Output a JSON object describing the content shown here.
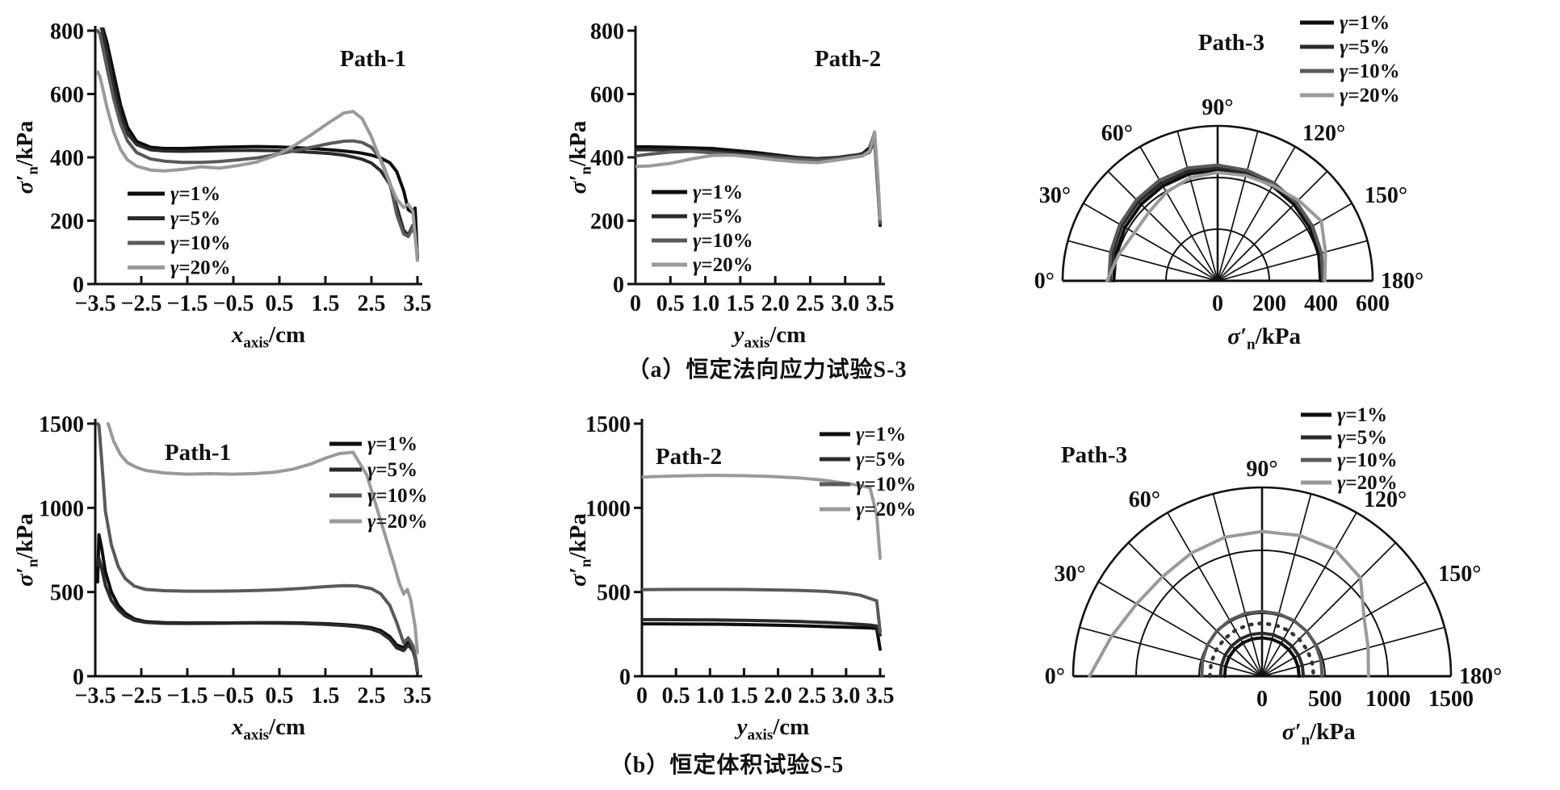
{
  "figure": {
    "background": "#ffffff",
    "series_labels": [
      "γ=1%",
      "γ=5%",
      "γ=10%",
      "γ=20%"
    ],
    "series_colors": [
      "#0d0d0d",
      "#2b2b2b",
      "#5a5a5a",
      "#9a9a9a"
    ],
    "axis_color": "#111111"
  },
  "captions": {
    "a": "（a）恒定法向应力试验S-3",
    "b": "（b）恒定体积试验S-5"
  },
  "chart_data": [
    {
      "id": "s3-path1",
      "type": "line",
      "title": "Path-1",
      "xlabel": {
        "base": "x",
        "sub": "axis",
        "rest": "/cm",
        "italic": true
      },
      "ylabel": {
        "base": "σ′",
        "sub": "n",
        "rest": "/kPa",
        "italic": true
      },
      "xlim": [
        -3.5,
        3.5
      ],
      "ylim": [
        0,
        800
      ],
      "xticks": {
        "values": [
          -3.5,
          -2.5,
          -1.5,
          -0.5,
          0.5,
          1.5,
          2.5,
          3.5
        ],
        "labels": [
          "−3.5",
          "−2.5",
          "−1.5",
          "−0.5",
          "0.5",
          "1.5",
          "2.5",
          "3.5"
        ]
      },
      "yticks": {
        "values": [
          0,
          200,
          400,
          600,
          800
        ],
        "labels": [
          "0",
          "200",
          "400",
          "600",
          "800"
        ]
      },
      "x": [
        -3.45,
        -3.4,
        -3.35,
        -3.25,
        -3.1,
        -2.95,
        -2.8,
        -2.6,
        -2.3,
        -2.0,
        -1.6,
        -1.2,
        -0.8,
        -0.4,
        0,
        0.4,
        0.8,
        1.2,
        1.6,
        1.9,
        2.1,
        2.3,
        2.5,
        2.7,
        2.9,
        3.05,
        3.2,
        3.3,
        3.4,
        3.45,
        3.5
      ],
      "series": [
        {
          "name": "γ=1%",
          "y": [
            840,
            835,
            815,
            765,
            665,
            565,
            495,
            450,
            432,
            428,
            428,
            430,
            432,
            433,
            434,
            433,
            431,
            428,
            424,
            420,
            417,
            413,
            407,
            398,
            383,
            355,
            295,
            235,
            225,
            240,
            80
          ]
        },
        {
          "name": "γ=5%",
          "y": [
            835,
            825,
            800,
            735,
            625,
            535,
            475,
            440,
            424,
            420,
            419,
            420,
            421,
            422,
            422,
            421,
            419,
            416,
            412,
            407,
            401,
            394,
            382,
            358,
            315,
            245,
            170,
            155,
            185,
            165,
            80
          ]
        },
        {
          "name": "γ=10%",
          "y": [
            800,
            790,
            755,
            685,
            585,
            505,
            452,
            415,
            395,
            388,
            384,
            384,
            387,
            392,
            398,
            408,
            420,
            432,
            444,
            451,
            452,
            447,
            432,
            395,
            320,
            220,
            158,
            150,
            178,
            155,
            95
          ]
        },
        {
          "name": "γ=20%",
          "y": [
            670,
            655,
            625,
            560,
            480,
            425,
            392,
            372,
            360,
            357,
            362,
            370,
            366,
            374,
            385,
            405,
            435,
            472,
            512,
            540,
            545,
            522,
            465,
            390,
            318,
            268,
            242,
            252,
            230,
            150,
            75
          ]
        }
      ]
    },
    {
      "id": "s3-path2",
      "type": "line",
      "title": "Path-2",
      "xlabel": {
        "base": "y",
        "sub": "axis",
        "rest": "/cm",
        "italic": true
      },
      "ylabel": {
        "base": "σ′",
        "sub": "n",
        "rest": "/kPa",
        "italic": true
      },
      "xlim": [
        0,
        3.5
      ],
      "ylim": [
        0,
        800
      ],
      "xticks": {
        "values": [
          0,
          0.5,
          1.0,
          1.5,
          2.0,
          2.5,
          3.0,
          3.5
        ],
        "labels": [
          "0",
          "0.5",
          "1.0",
          "1.5",
          "2.0",
          "2.5",
          "3.0",
          "3.5"
        ]
      },
      "yticks": {
        "values": [
          0,
          200,
          400,
          600,
          800
        ],
        "labels": [
          "0",
          "200",
          "400",
          "600",
          "800"
        ]
      },
      "x": [
        0,
        0.2,
        0.5,
        0.8,
        1.1,
        1.4,
        1.7,
        2.0,
        2.3,
        2.6,
        2.9,
        3.1,
        3.25,
        3.35,
        3.42,
        3.47,
        3.5
      ],
      "series": [
        {
          "name": "γ=1%",
          "y": [
            433,
            433,
            432,
            430,
            428,
            422,
            416,
            408,
            400,
            396,
            398,
            404,
            412,
            430,
            478,
            320,
            185
          ]
        },
        {
          "name": "γ=5%",
          "y": [
            424,
            424,
            423,
            422,
            419,
            414,
            409,
            404,
            399,
            396,
            400,
            406,
            410,
            422,
            465,
            300,
            190
          ]
        },
        {
          "name": "γ=10%",
          "y": [
            404,
            410,
            417,
            419,
            414,
            408,
            404,
            399,
            394,
            391,
            396,
            402,
            406,
            416,
            455,
            290,
            195
          ]
        },
        {
          "name": "γ=20%",
          "y": [
            371,
            373,
            381,
            395,
            406,
            407,
            400,
            392,
            386,
            383,
            392,
            399,
            404,
            420,
            480,
            330,
            205
          ]
        }
      ]
    },
    {
      "id": "s3-path3",
      "type": "polar-line",
      "title": "Path-3",
      "rlabel": {
        "base": "σ′",
        "sub": "n",
        "rest": "/kPa",
        "italic": true
      },
      "rlim": [
        0,
        600
      ],
      "rticks": {
        "values": [
          0,
          200,
          400,
          600
        ],
        "labels": [
          "0",
          "200",
          "400",
          "600"
        ]
      },
      "angle_ticks_deg": [
        0,
        30,
        60,
        90,
        120,
        150,
        180
      ],
      "spoke_step_deg": 15,
      "angles_deg": [
        0,
        15,
        30,
        45,
        60,
        75,
        90,
        105,
        120,
        135,
        150,
        165,
        180
      ],
      "series": [
        {
          "name": "γ=1%",
          "r": [
            402,
            408,
            414,
            419,
            424,
            428,
            430,
            428,
            424,
            418,
            412,
            405,
            398
          ]
        },
        {
          "name": "γ=5%",
          "r": [
            416,
            421,
            428,
            433,
            437,
            440,
            438,
            436,
            432,
            428,
            421,
            413,
            406
          ]
        },
        {
          "name": "γ=10%",
          "r": [
            421,
            429,
            437,
            444,
            450,
            452,
            448,
            443,
            437,
            431,
            424,
            416,
            409
          ]
        },
        {
          "name": "γ=20%",
          "r": [
            428,
            396,
            372,
            376,
            396,
            413,
            420,
            422,
            426,
            442,
            463,
            432,
            415
          ]
        }
      ]
    },
    {
      "id": "s5-path1",
      "type": "line",
      "title": "Path-1",
      "xlabel": {
        "base": "x",
        "sub": "axis",
        "rest": "/cm",
        "italic": true
      },
      "ylabel": {
        "base": "σ′",
        "sub": "n",
        "rest": "/kPa",
        "italic": true
      },
      "xlim": [
        -3.5,
        3.5
      ],
      "ylim": [
        0,
        1500
      ],
      "xticks": {
        "values": [
          -3.5,
          -2.5,
          -1.5,
          -0.5,
          0.5,
          1.5,
          2.5,
          3.5
        ],
        "labels": [
          "−3.5",
          "−2.5",
          "−1.5",
          "−0.5",
          "0.5",
          "1.5",
          "2.5",
          "3.5"
        ]
      },
      "yticks": {
        "values": [
          0,
          500,
          1000,
          1500
        ],
        "labels": [
          "0",
          "500",
          "1000",
          "1500"
        ]
      },
      "x": [
        -3.45,
        -3.42,
        -3.36,
        -3.28,
        -3.15,
        -3.0,
        -2.85,
        -2.65,
        -2.4,
        -2.0,
        -1.5,
        -1.0,
        -0.5,
        0,
        0.5,
        1.0,
        1.5,
        1.9,
        2.2,
        2.5,
        2.7,
        2.9,
        3.05,
        3.2,
        3.3,
        3.4,
        3.45,
        3.5
      ],
      "series": [
        {
          "name": "γ=1%",
          "y": [
            560,
            840,
            760,
            620,
            500,
            420,
            375,
            340,
            324,
            318,
            316,
            316,
            317,
            318,
            318,
            316,
            312,
            306,
            300,
            288,
            272,
            235,
            185,
            170,
            200,
            170,
            120,
            25
          ]
        },
        {
          "name": "γ=5%",
          "y": [
            660,
            700,
            640,
            540,
            450,
            395,
            358,
            332,
            320,
            314,
            313,
            314,
            315,
            316,
            315,
            313,
            308,
            301,
            294,
            280,
            260,
            220,
            168,
            152,
            185,
            152,
            108,
            25
          ]
        },
        {
          "name": "γ=10%",
          "y": [
            1500,
            1490,
            1280,
            980,
            780,
            650,
            580,
            535,
            515,
            508,
            505,
            505,
            506,
            509,
            514,
            522,
            532,
            538,
            536,
            520,
            490,
            420,
            318,
            198,
            228,
            182,
            128,
            35
          ]
        },
        {
          "name": "γ=20%",
          "x": [
            -3.22,
            -3.1,
            -2.95,
            -2.8,
            -2.6,
            -2.4,
            -2.0,
            -1.5,
            -1.0,
            -0.5,
            0,
            0.4,
            0.8,
            1.2,
            1.5,
            1.8,
            2.1,
            2.4,
            2.6,
            2.8,
            3.0,
            3.1,
            3.2,
            3.28,
            3.35,
            3.45,
            3.5
          ],
          "y": [
            1500,
            1395,
            1315,
            1268,
            1240,
            1222,
            1207,
            1200,
            1203,
            1200,
            1204,
            1212,
            1230,
            1262,
            1295,
            1322,
            1330,
            1195,
            1015,
            835,
            655,
            558,
            488,
            515,
            458,
            295,
            140
          ]
        }
      ]
    },
    {
      "id": "s5-path2",
      "type": "line",
      "title": "Path-2",
      "xlabel": {
        "base": "y",
        "sub": "axis",
        "rest": "/cm",
        "italic": true
      },
      "ylabel": {
        "base": "σ′",
        "sub": "n",
        "rest": "/kPa",
        "italic": true
      },
      "xlim": [
        0,
        3.5
      ],
      "ylim": [
        0,
        1500
      ],
      "xticks": {
        "values": [
          0,
          0.5,
          1.0,
          1.5,
          2.0,
          2.5,
          3.0,
          3.5
        ],
        "labels": [
          "0",
          "0.5",
          "1.0",
          "1.5",
          "2.0",
          "2.5",
          "3.0",
          "3.5"
        ]
      },
      "yticks": {
        "values": [
          0,
          500,
          1000,
          1500
        ],
        "labels": [
          "0",
          "500",
          "1000",
          "1500"
        ]
      },
      "x": [
        0,
        0.3,
        0.7,
        1.1,
        1.5,
        1.9,
        2.3,
        2.7,
        3.0,
        3.2,
        3.35,
        3.45,
        3.5
      ],
      "series": [
        {
          "name": "γ=1%",
          "y": [
            311,
            311,
            310,
            309,
            307,
            304,
            300,
            295,
            291,
            289,
            287,
            283,
            160
          ]
        },
        {
          "name": "γ=5%",
          "y": [
            336,
            336,
            335,
            334,
            332,
            329,
            325,
            319,
            313,
            308,
            304,
            298,
            245
          ]
        },
        {
          "name": "γ=10%",
          "y": [
            514,
            515,
            516,
            516,
            515,
            513,
            510,
            504,
            494,
            482,
            462,
            448,
            265
          ]
        },
        {
          "name": "γ=20%",
          "y": [
            1183,
            1187,
            1191,
            1193,
            1191,
            1186,
            1178,
            1163,
            1145,
            1133,
            1120,
            960,
            700
          ]
        }
      ]
    },
    {
      "id": "s5-path3",
      "type": "polar-line",
      "title": "Path-3",
      "rlabel": {
        "base": "σ′",
        "sub": "n",
        "rest": "/kPa",
        "italic": true
      },
      "rlim": [
        0,
        1500
      ],
      "rticks": {
        "values": [
          0,
          500,
          1000,
          1500
        ],
        "labels": [
          "0",
          "500",
          "1000",
          "1500"
        ]
      },
      "angle_ticks_deg": [
        0,
        30,
        60,
        90,
        120,
        150,
        180
      ],
      "spoke_step_deg": 15,
      "angles_deg": [
        0,
        15,
        30,
        45,
        60,
        75,
        90,
        105,
        120,
        135,
        150,
        165,
        180
      ],
      "series": [
        {
          "name": "γ=1%",
          "r": [
            297,
            300,
            303,
            305,
            306,
            306,
            305,
            304,
            302,
            300,
            298,
            296,
            294
          ]
        },
        {
          "name": "γ=5%",
          "r": [
            330,
            334,
            338,
            341,
            343,
            343,
            342,
            341,
            339,
            337,
            334,
            331,
            328
          ]
        },
        {
          "name": "γ=10%",
          "r": [
            478,
            490,
            500,
            508,
            513,
            516,
            515,
            513,
            509,
            503,
            494,
            485,
            477
          ]
        },
        {
          "name": "γ=20%",
          "r": [
            1370,
            1235,
            1150,
            1118,
            1128,
            1143,
            1150,
            1157,
            1160,
            1105,
            935,
            872,
            845
          ]
        },
        {
          "name": "dotted-arc",
          "style": "dotted",
          "color": "#333333",
          "legend": false,
          "r": [
            415,
            418,
            420,
            421,
            422,
            422,
            421,
            420,
            419,
            417,
            415,
            412,
            410
          ]
        }
      ]
    }
  ]
}
